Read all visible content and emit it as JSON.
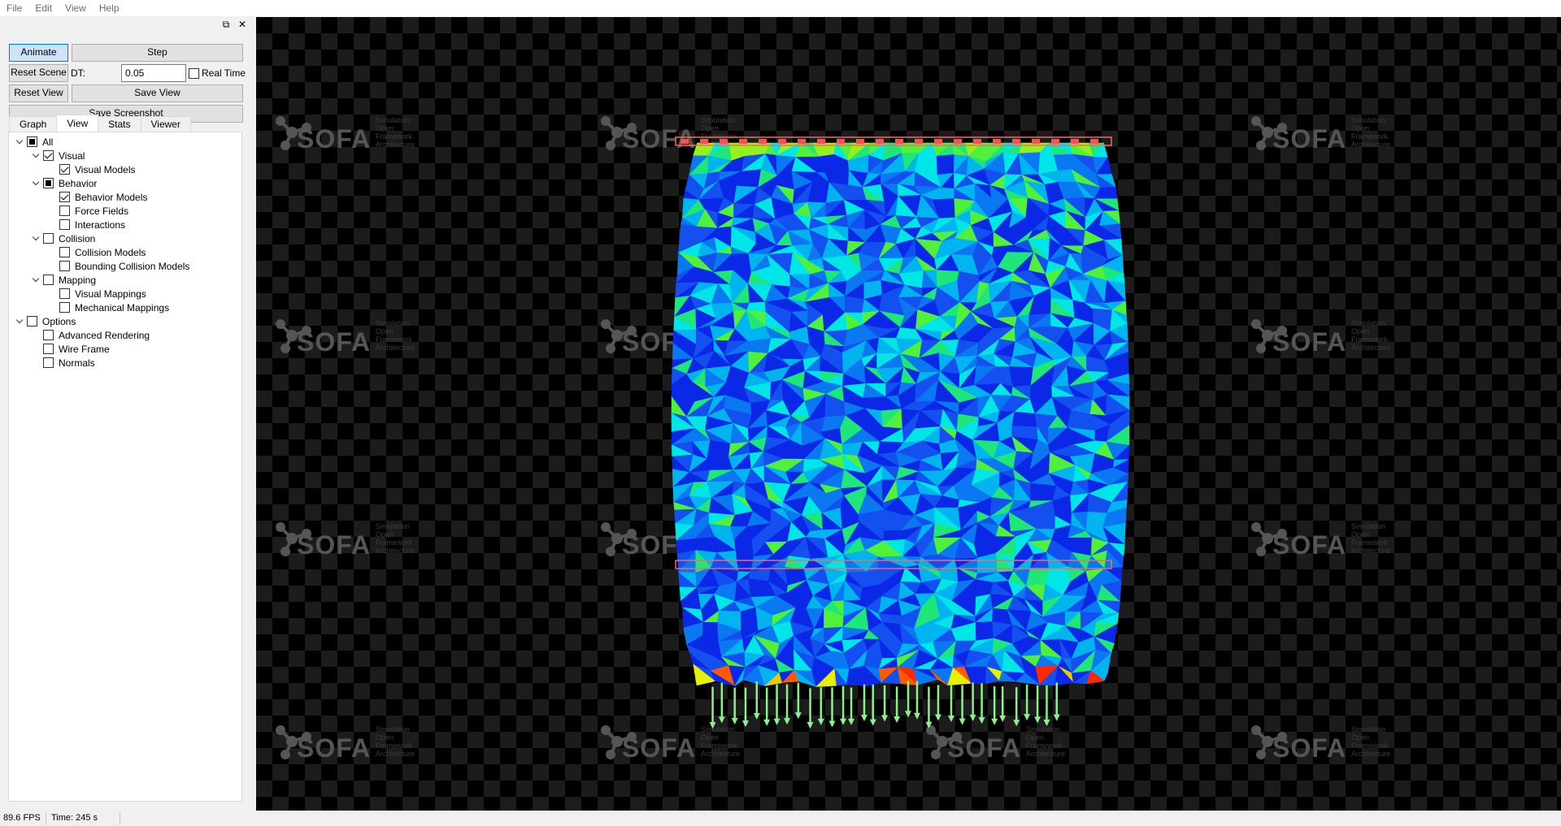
{
  "menu": [
    "File",
    "Edit",
    "View",
    "Help"
  ],
  "dock": {
    "float_icon": "⧉",
    "close_icon": "✕"
  },
  "controls": {
    "animate": "Animate",
    "step": "Step",
    "reset_scene": "Reset Scene",
    "dt_label": "DT:",
    "dt_value": "0.05",
    "real_time": "Real Time",
    "reset_view": "Reset View",
    "save_view": "Save View",
    "save_screenshot": "Save Screenshot"
  },
  "tabs": [
    "Graph",
    "View",
    "Stats",
    "Viewer"
  ],
  "active_tab": "View",
  "tree": [
    {
      "label": "All",
      "state": "partial",
      "expandable": true,
      "level": 0
    },
    {
      "label": "Visual",
      "state": "checked",
      "expandable": true,
      "level": 1
    },
    {
      "label": "Visual Models",
      "state": "checked",
      "expandable": false,
      "level": 2
    },
    {
      "label": "Behavior",
      "state": "partial",
      "expandable": true,
      "level": 1
    },
    {
      "label": "Behavior Models",
      "state": "checked",
      "expandable": false,
      "level": 2
    },
    {
      "label": "Force Fields",
      "state": "unchecked",
      "expandable": false,
      "level": 2
    },
    {
      "label": "Interactions",
      "state": "unchecked",
      "expandable": false,
      "level": 2
    },
    {
      "label": "Collision",
      "state": "unchecked",
      "expandable": true,
      "level": 1
    },
    {
      "label": "Collision Models",
      "state": "unchecked",
      "expandable": false,
      "level": 2
    },
    {
      "label": "Bounding Collision Models",
      "state": "unchecked",
      "expandable": false,
      "level": 2
    },
    {
      "label": "Mapping",
      "state": "unchecked",
      "expandable": true,
      "level": 1
    },
    {
      "label": "Visual Mappings",
      "state": "unchecked",
      "expandable": false,
      "level": 2
    },
    {
      "label": "Mechanical Mappings",
      "state": "unchecked",
      "expandable": false,
      "level": 2
    },
    {
      "label": "Options",
      "state": "unchecked",
      "expandable": true,
      "level": 0
    },
    {
      "label": "Advanced Rendering",
      "state": "unchecked",
      "expandable": false,
      "level": 1
    },
    {
      "label": "Wire Frame",
      "state": "unchecked",
      "expandable": false,
      "level": 1
    },
    {
      "label": "Normals",
      "state": "unchecked",
      "expandable": false,
      "level": 1
    }
  ],
  "watermark": {
    "brand": "SOFA",
    "tagline": "Simulation Open Framework Architecture"
  },
  "status": {
    "fps": "89.6 FPS",
    "time": "Time: 245 s"
  },
  "colors": {
    "mesh_palette": [
      "#0a28e6",
      "#1450f0",
      "#0a78f0",
      "#00b4f0",
      "#00e6e6",
      "#1ee678",
      "#50f03c",
      "#96f01e"
    ],
    "hot_palette": [
      "#ff2800",
      "#ff5a00",
      "#f0c800",
      "#e6f000"
    ],
    "arrow": "#8cf08c",
    "constraint_box": "#ff6464"
  }
}
